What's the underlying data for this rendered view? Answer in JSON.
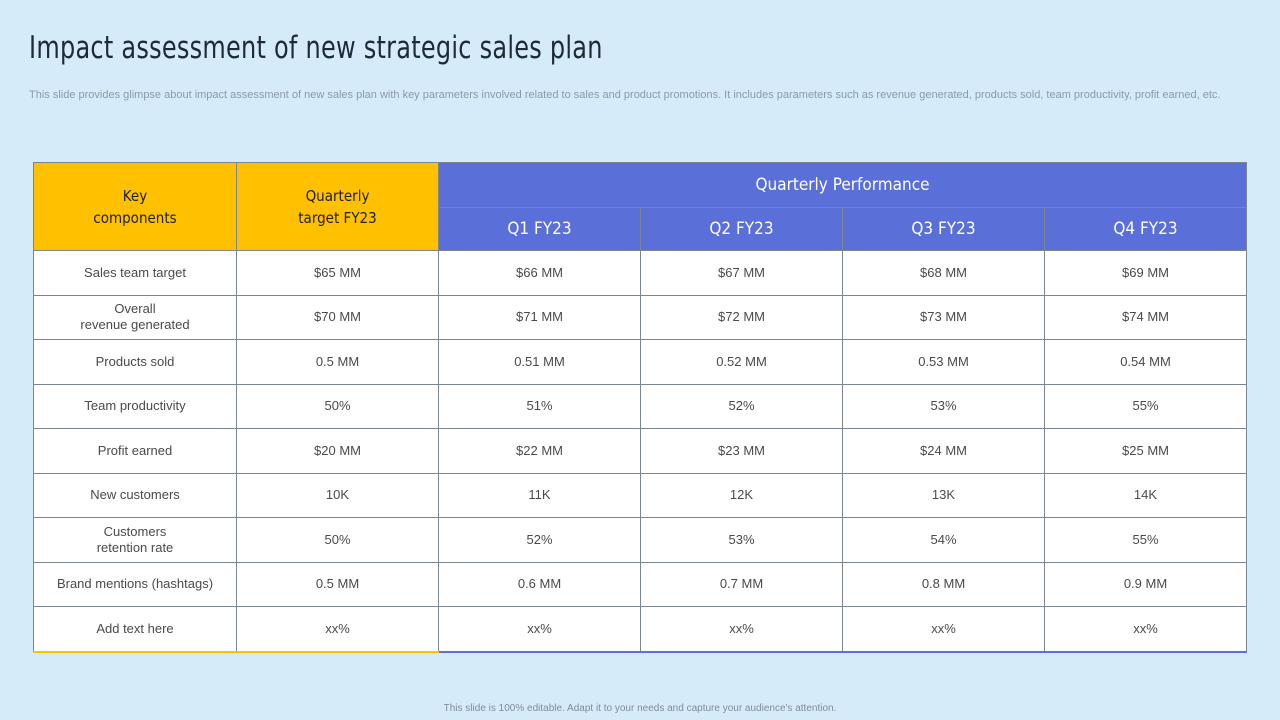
{
  "title": "Impact assessment of new strategic sales plan",
  "description": "This slide provides glimpse about impact assessment of new sales plan with key parameters involved related to sales and product promotions. It includes parameters such as revenue generated, products sold, team productivity, profit earned, etc.",
  "table": {
    "header": {
      "key_components": [
        "Key",
        "components"
      ],
      "quarterly_target": [
        "Quarterly",
        "target  FY23"
      ],
      "quarterly_performance": "Quarterly  Performance",
      "quarters": [
        "Q1 FY23",
        "Q2 FY23",
        "Q3 FY23",
        "Q4 FY23"
      ]
    },
    "rows": [
      {
        "label": [
          "Sales team target"
        ],
        "target": "$65 MM",
        "q": [
          "$66 MM",
          "$67 MM",
          "$68 MM",
          "$69 MM"
        ]
      },
      {
        "label": [
          "Overall",
          "revenue  generated"
        ],
        "target": "$70 MM",
        "q": [
          "$71 MM",
          "$72 MM",
          "$73 MM",
          "$74 MM"
        ]
      },
      {
        "label": [
          "Products sold"
        ],
        "target": "0.5 MM",
        "q": [
          "0.51 MM",
          "0.52 MM",
          "0.53 MM",
          "0.54 MM"
        ]
      },
      {
        "label": [
          "Team  productivity"
        ],
        "target": "50%",
        "q": [
          "51%",
          "52%",
          "53%",
          "55%"
        ]
      },
      {
        "label": [
          "Profit  earned"
        ],
        "target": "$20 MM",
        "q": [
          "$22 MM",
          "$23 MM",
          "$24 MM",
          "$25 MM"
        ]
      },
      {
        "label": [
          "New customers"
        ],
        "target": "10K",
        "q": [
          "11K",
          "12K",
          "13K",
          "14K"
        ]
      },
      {
        "label": [
          "Customers",
          "retention rate"
        ],
        "target": "50%",
        "q": [
          "52%",
          "53%",
          "54%",
          "55%"
        ]
      },
      {
        "label": [
          "Brand  mentions (hashtags)"
        ],
        "target": "0.5 MM",
        "q": [
          "0.6 MM",
          "0.7 MM",
          "0.8 MM",
          "0.9 MM"
        ]
      },
      {
        "label": [
          "Add text here"
        ],
        "target": "xx%",
        "q": [
          "xx%",
          "xx%",
          "xx%",
          "xx%"
        ]
      }
    ]
  },
  "footer": "This slide is 100% editable.  Adapt it to your needs and capture your audience's attention.",
  "colors": {
    "background": "#d6ebfa",
    "header_yellow": "#ffc000",
    "header_blue": "#5a6fd8"
  }
}
